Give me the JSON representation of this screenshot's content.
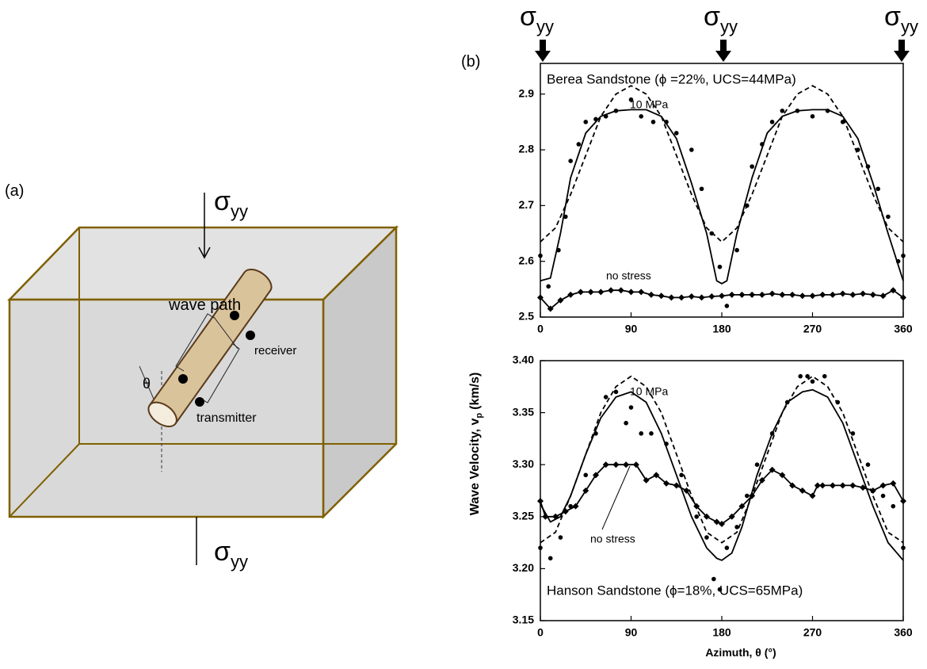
{
  "diagram": {
    "panel_label": "(a)",
    "stress_top": {
      "symbol": "σ",
      "subscript": "yy"
    },
    "stress_bottom": {
      "symbol": "σ",
      "subscript": "yy"
    },
    "wave_path": "wave path",
    "receiver": "receiver",
    "transmitter": "transmitter",
    "angle": "θ"
  },
  "figure": {
    "panel_label": "(b)",
    "stress_labels": [
      {
        "symbol": "σ",
        "subscript": "yy"
      },
      {
        "symbol": "σ",
        "subscript": "yy"
      },
      {
        "symbol": "σ",
        "subscript": "yy"
      }
    ],
    "ylabel": {
      "text": "Wave Velocity, v",
      "subscript": "p",
      "unit": "(km/s)"
    },
    "xlabel": "Azimuth, θ (°)"
  },
  "chart_data": [
    {
      "type": "line",
      "annotation": "Berea Sandstone (ϕ =22%, UCS=44MPa)",
      "xlim": [
        0,
        360
      ],
      "xticks": [
        0,
        90,
        180,
        270,
        360
      ],
      "ylim": [
        2.5,
        2.955
      ],
      "yticks": [
        2.5,
        2.6,
        2.7,
        2.8,
        2.9
      ],
      "grid": false,
      "series": [
        {
          "name": "10 MPa",
          "color": "#000000",
          "style": "solid",
          "marker": "none",
          "x": [
            0,
            10,
            20,
            30,
            45,
            60,
            75,
            90,
            105,
            120,
            135,
            150,
            165,
            175,
            180,
            185,
            195,
            210,
            225,
            240,
            255,
            270,
            285,
            300,
            315,
            330,
            345,
            360
          ],
          "values": [
            2.565,
            2.57,
            2.65,
            2.75,
            2.83,
            2.86,
            2.87,
            2.872,
            2.872,
            2.86,
            2.82,
            2.74,
            2.65,
            2.565,
            2.56,
            2.565,
            2.65,
            2.75,
            2.83,
            2.86,
            2.87,
            2.872,
            2.872,
            2.86,
            2.82,
            2.74,
            2.65,
            2.565
          ]
        },
        {
          "color": "#000000",
          "style": "dashed",
          "marker": "none",
          "x": [
            0,
            15,
            30,
            45,
            60,
            75,
            90,
            105,
            120,
            135,
            150,
            165,
            180,
            195,
            210,
            225,
            240,
            255,
            270,
            285,
            300,
            315,
            330,
            345,
            360
          ],
          "values": [
            2.635,
            2.66,
            2.72,
            2.79,
            2.86,
            2.9,
            2.915,
            2.9,
            2.86,
            2.79,
            2.72,
            2.66,
            2.635,
            2.66,
            2.72,
            2.79,
            2.86,
            2.9,
            2.915,
            2.9,
            2.86,
            2.79,
            2.72,
            2.66,
            2.635
          ]
        },
        {
          "color": "#000000",
          "style": "none",
          "marker": "dot",
          "x": [
            0,
            8,
            18,
            25,
            30,
            38,
            45,
            55,
            65,
            75,
            90,
            100,
            112,
            125,
            135,
            150,
            160,
            170,
            178,
            185,
            195,
            205,
            210,
            220,
            230,
            240,
            255,
            270,
            285,
            300,
            315,
            325,
            335,
            345,
            355,
            360
          ],
          "values": [
            2.61,
            2.555,
            2.62,
            2.68,
            2.78,
            2.81,
            2.85,
            2.855,
            2.86,
            2.87,
            2.89,
            2.86,
            2.85,
            2.85,
            2.83,
            2.8,
            2.73,
            2.65,
            2.59,
            2.52,
            2.62,
            2.7,
            2.77,
            2.81,
            2.85,
            2.87,
            2.87,
            2.86,
            2.87,
            2.85,
            2.8,
            2.77,
            2.73,
            2.68,
            2.6,
            2.61
          ]
        },
        {
          "name": "no stress",
          "color": "#000000",
          "style": "solid",
          "marker": "diamond",
          "x": [
            0,
            10,
            20,
            30,
            40,
            50,
            60,
            70,
            80,
            90,
            100,
            110,
            120,
            130,
            140,
            150,
            160,
            170,
            180,
            190,
            200,
            210,
            220,
            230,
            240,
            250,
            260,
            270,
            280,
            290,
            300,
            310,
            320,
            330,
            340,
            350,
            360
          ],
          "values": [
            2.535,
            2.515,
            2.53,
            2.54,
            2.545,
            2.545,
            2.545,
            2.548,
            2.548,
            2.545,
            2.545,
            2.54,
            2.538,
            2.535,
            2.535,
            2.537,
            2.535,
            2.537,
            2.538,
            2.54,
            2.54,
            2.54,
            2.54,
            2.542,
            2.54,
            2.54,
            2.538,
            2.538,
            2.54,
            2.54,
            2.542,
            2.54,
            2.542,
            2.54,
            2.538,
            2.548,
            2.535
          ]
        }
      ]
    },
    {
      "type": "line",
      "annotation": "Hanson Sandstone (ϕ=18%, UCS=65MPa)",
      "xlim": [
        0,
        360
      ],
      "xticks": [
        0,
        90,
        180,
        270,
        360
      ],
      "ylim": [
        3.15,
        3.4
      ],
      "yticks": [
        3.15,
        {
          "value": 3.2,
          "label": "3.20"
        },
        3.25,
        {
          "value": 3.3,
          "label": "3.30"
        },
        3.35,
        {
          "value": 3.4,
          "label": "3.40"
        }
      ],
      "grid": false,
      "series": [
        {
          "name": "10 MPa",
          "color": "#000000",
          "style": "solid",
          "marker": "none",
          "x": [
            0,
            10,
            20,
            30,
            45,
            60,
            75,
            90,
            105,
            120,
            135,
            150,
            165,
            175,
            180,
            190,
            200,
            215,
            230,
            245,
            260,
            270,
            285,
            300,
            315,
            330,
            345,
            360
          ],
          "values": [
            3.262,
            3.245,
            3.25,
            3.27,
            3.31,
            3.345,
            3.365,
            3.37,
            3.36,
            3.33,
            3.29,
            3.25,
            3.22,
            3.21,
            3.208,
            3.215,
            3.24,
            3.29,
            3.33,
            3.36,
            3.37,
            3.372,
            3.365,
            3.34,
            3.3,
            3.26,
            3.225,
            3.208
          ]
        },
        {
          "color": "#000000",
          "style": "dashed",
          "marker": "none",
          "x": [
            0,
            15,
            30,
            45,
            60,
            75,
            90,
            105,
            120,
            135,
            150,
            165,
            180,
            195,
            210,
            225,
            240,
            255,
            270,
            285,
            300,
            315,
            330,
            345,
            360
          ],
          "values": [
            3.225,
            3.235,
            3.27,
            3.31,
            3.35,
            3.375,
            3.385,
            3.375,
            3.35,
            3.31,
            3.27,
            3.235,
            3.225,
            3.235,
            3.27,
            3.31,
            3.35,
            3.375,
            3.385,
            3.375,
            3.35,
            3.31,
            3.27,
            3.235,
            3.225
          ]
        },
        {
          "color": "#000000",
          "style": "none",
          "marker": "dot",
          "x": [
            0,
            10,
            20,
            30,
            45,
            55,
            65,
            75,
            85,
            90,
            100,
            110,
            125,
            140,
            155,
            165,
            172,
            178,
            185,
            195,
            205,
            215,
            230,
            245,
            258,
            265,
            270,
            282,
            295,
            310,
            325,
            340,
            350,
            360
          ],
          "values": [
            3.22,
            3.21,
            3.23,
            3.26,
            3.29,
            3.33,
            3.365,
            3.37,
            3.34,
            3.355,
            3.33,
            3.33,
            3.32,
            3.29,
            3.25,
            3.23,
            3.19,
            3.18,
            3.22,
            3.24,
            3.27,
            3.3,
            3.33,
            3.36,
            3.385,
            3.385,
            3.38,
            3.385,
            3.36,
            3.33,
            3.3,
            3.27,
            3.26,
            3.22
          ]
        },
        {
          "name": "no stress",
          "color": "#000000",
          "style": "solid",
          "marker": "diamond",
          "x": [
            0,
            5,
            15,
            25,
            35,
            45,
            55,
            65,
            75,
            85,
            95,
            105,
            115,
            125,
            135,
            145,
            155,
            165,
            175,
            180,
            190,
            200,
            210,
            220,
            230,
            240,
            250,
            260,
            270,
            275,
            280,
            290,
            300,
            310,
            320,
            330,
            340,
            350,
            360
          ],
          "values": [
            3.265,
            3.25,
            3.25,
            3.255,
            3.26,
            3.275,
            3.29,
            3.3,
            3.3,
            3.3,
            3.3,
            3.285,
            3.29,
            3.282,
            3.28,
            3.275,
            3.26,
            3.25,
            3.245,
            3.243,
            3.25,
            3.26,
            3.27,
            3.285,
            3.295,
            3.29,
            3.28,
            3.275,
            3.27,
            3.28,
            3.28,
            3.28,
            3.28,
            3.28,
            3.278,
            3.275,
            3.28,
            3.282,
            3.265
          ]
        }
      ]
    }
  ]
}
